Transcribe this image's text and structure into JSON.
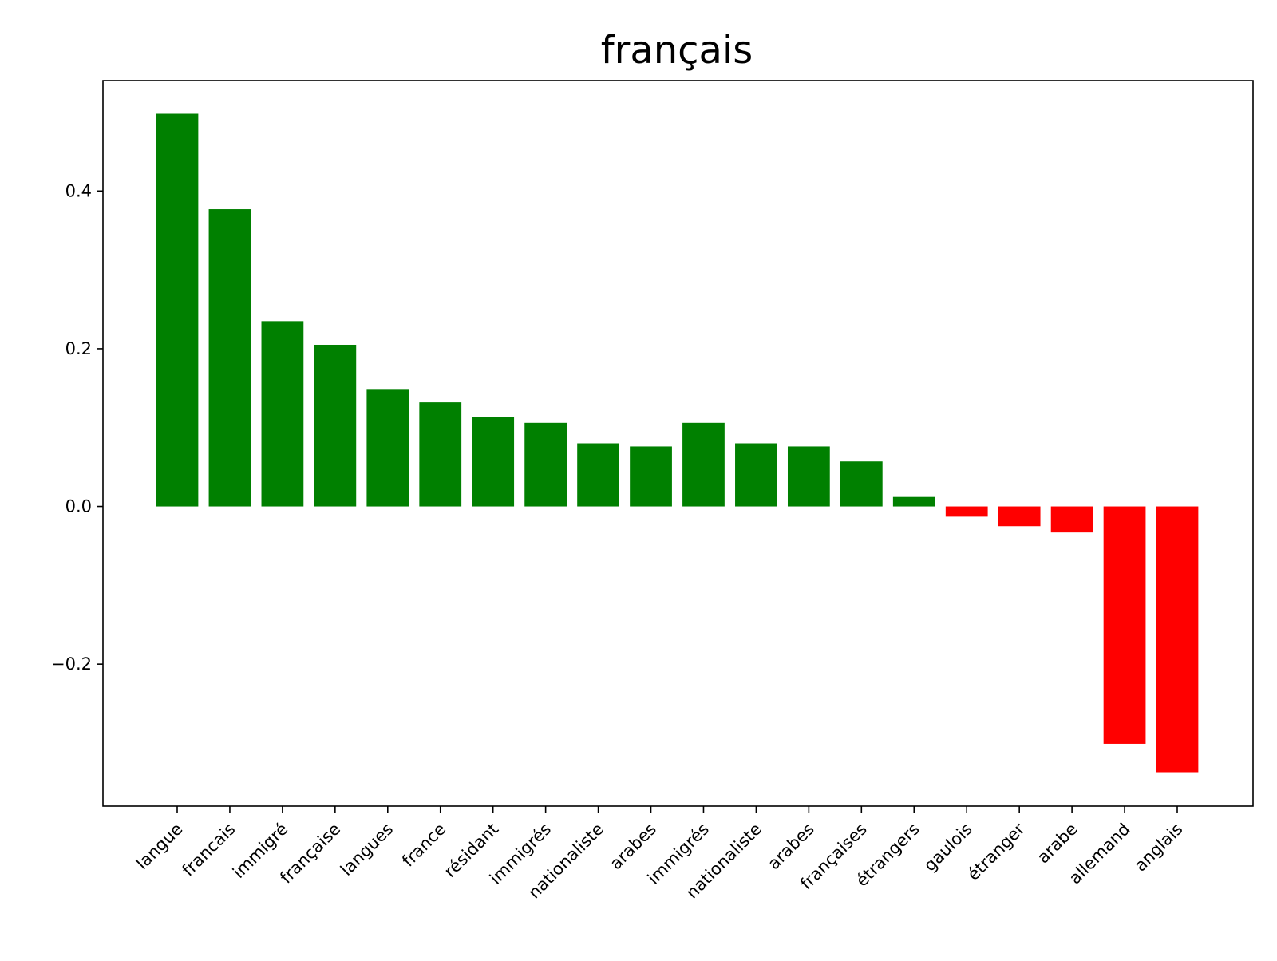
{
  "chart_data": {
    "type": "bar",
    "title": "français",
    "xlabel": "",
    "ylabel": "",
    "categories": [
      "langue",
      "francais",
      "immigré",
      "française",
      "langues",
      "france",
      "résidant",
      "immigrés",
      "nationaliste",
      "arabes",
      "immigrés",
      "nationaliste",
      "arabes",
      "françaises",
      "étrangers",
      "gaulois",
      "étranger",
      "arabe",
      "allemand",
      "anglais"
    ],
    "values": [
      0.498,
      0.377,
      0.235,
      0.205,
      0.149,
      0.132,
      0.113,
      0.106,
      0.08,
      0.076,
      0.106,
      0.08,
      0.076,
      0.057,
      0.012,
      -0.013,
      -0.025,
      -0.033,
      -0.301,
      -0.337
    ],
    "ylim": [
      -0.38,
      0.54
    ],
    "yticks": [
      0.4,
      0.2,
      0.0,
      -0.2
    ],
    "ytick_labels": [
      "0.4",
      "0.2",
      "0.0",
      "−0.2"
    ],
    "colors": {
      "positive": "#008000",
      "negative": "#ff0000"
    },
    "grid": false,
    "legend": "none"
  }
}
